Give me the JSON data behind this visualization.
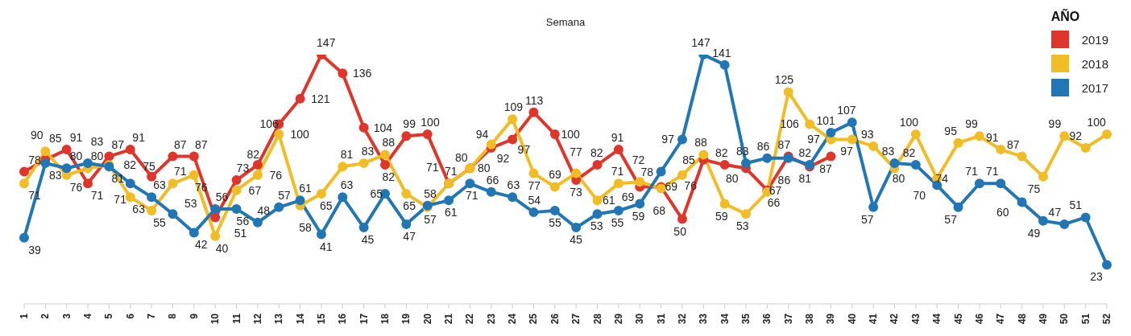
{
  "chart_data": {
    "type": "line",
    "title": "Semana",
    "legend_title": "AÑO",
    "legend": "top right",
    "marker": "circle",
    "line_style": "solid",
    "data_labels": true,
    "categories": [
      "1",
      "2",
      "3",
      "4",
      "5",
      "6",
      "7",
      "8",
      "9",
      "10",
      "11",
      "12",
      "13",
      "14",
      "15",
      "16",
      "17",
      "18",
      "19",
      "20",
      "21",
      "22",
      "23",
      "24",
      "25",
      "26",
      "27",
      "28",
      "29",
      "30",
      "31",
      "32",
      "33",
      "34",
      "35",
      "36",
      "37",
      "38",
      "39",
      "40",
      "41",
      "42",
      "43",
      "44",
      "45",
      "46",
      "47",
      "48",
      "49",
      "50",
      "51",
      "52"
    ],
    "series": [
      {
        "name": "2019",
        "color": "#e0352b",
        "values": [
          78,
          85,
          91,
          71,
          87,
          91,
          75,
          87,
          87,
          51,
          73,
          82,
          106,
          121,
          147,
          136,
          104,
          82,
          99,
          100,
          71,
          80,
          92,
          97,
          113,
          100,
          73,
          82,
          91,
          69,
          69,
          50,
          85,
          82,
          80,
          67,
          87,
          81,
          87,
          null,
          null,
          null,
          null,
          null,
          null,
          null,
          null,
          null,
          null,
          null,
          null,
          null
        ]
      },
      {
        "name": "2018",
        "color": "#f2bc25",
        "values": [
          71,
          90,
          76,
          80,
          82,
          63,
          55,
          71,
          76,
          40,
          67,
          76,
          100,
          58,
          65,
          81,
          83,
          88,
          65,
          57,
          71,
          80,
          94,
          109,
          77,
          69,
          77,
          61,
          71,
          72,
          68,
          76,
          88,
          59,
          53,
          66,
          125,
          106,
          97,
          97,
          93,
          80,
          100,
          74,
          95,
          99,
          91,
          87,
          75,
          99,
          92,
          100
        ]
      },
      {
        "name": "2017",
        "color": "#2176b5",
        "values": [
          39,
          83,
          80,
          83,
          81,
          71,
          63,
          53,
          42,
          56,
          56,
          48,
          57,
          61,
          41,
          63,
          45,
          65,
          47,
          58,
          61,
          71,
          66,
          63,
          54,
          55,
          45,
          53,
          55,
          59,
          78,
          97,
          147,
          141,
          83,
          86,
          86,
          82,
          101,
          107,
          57,
          83,
          82,
          70,
          57,
          71,
          71,
          60,
          49,
          47,
          51,
          23
        ]
      }
    ]
  }
}
